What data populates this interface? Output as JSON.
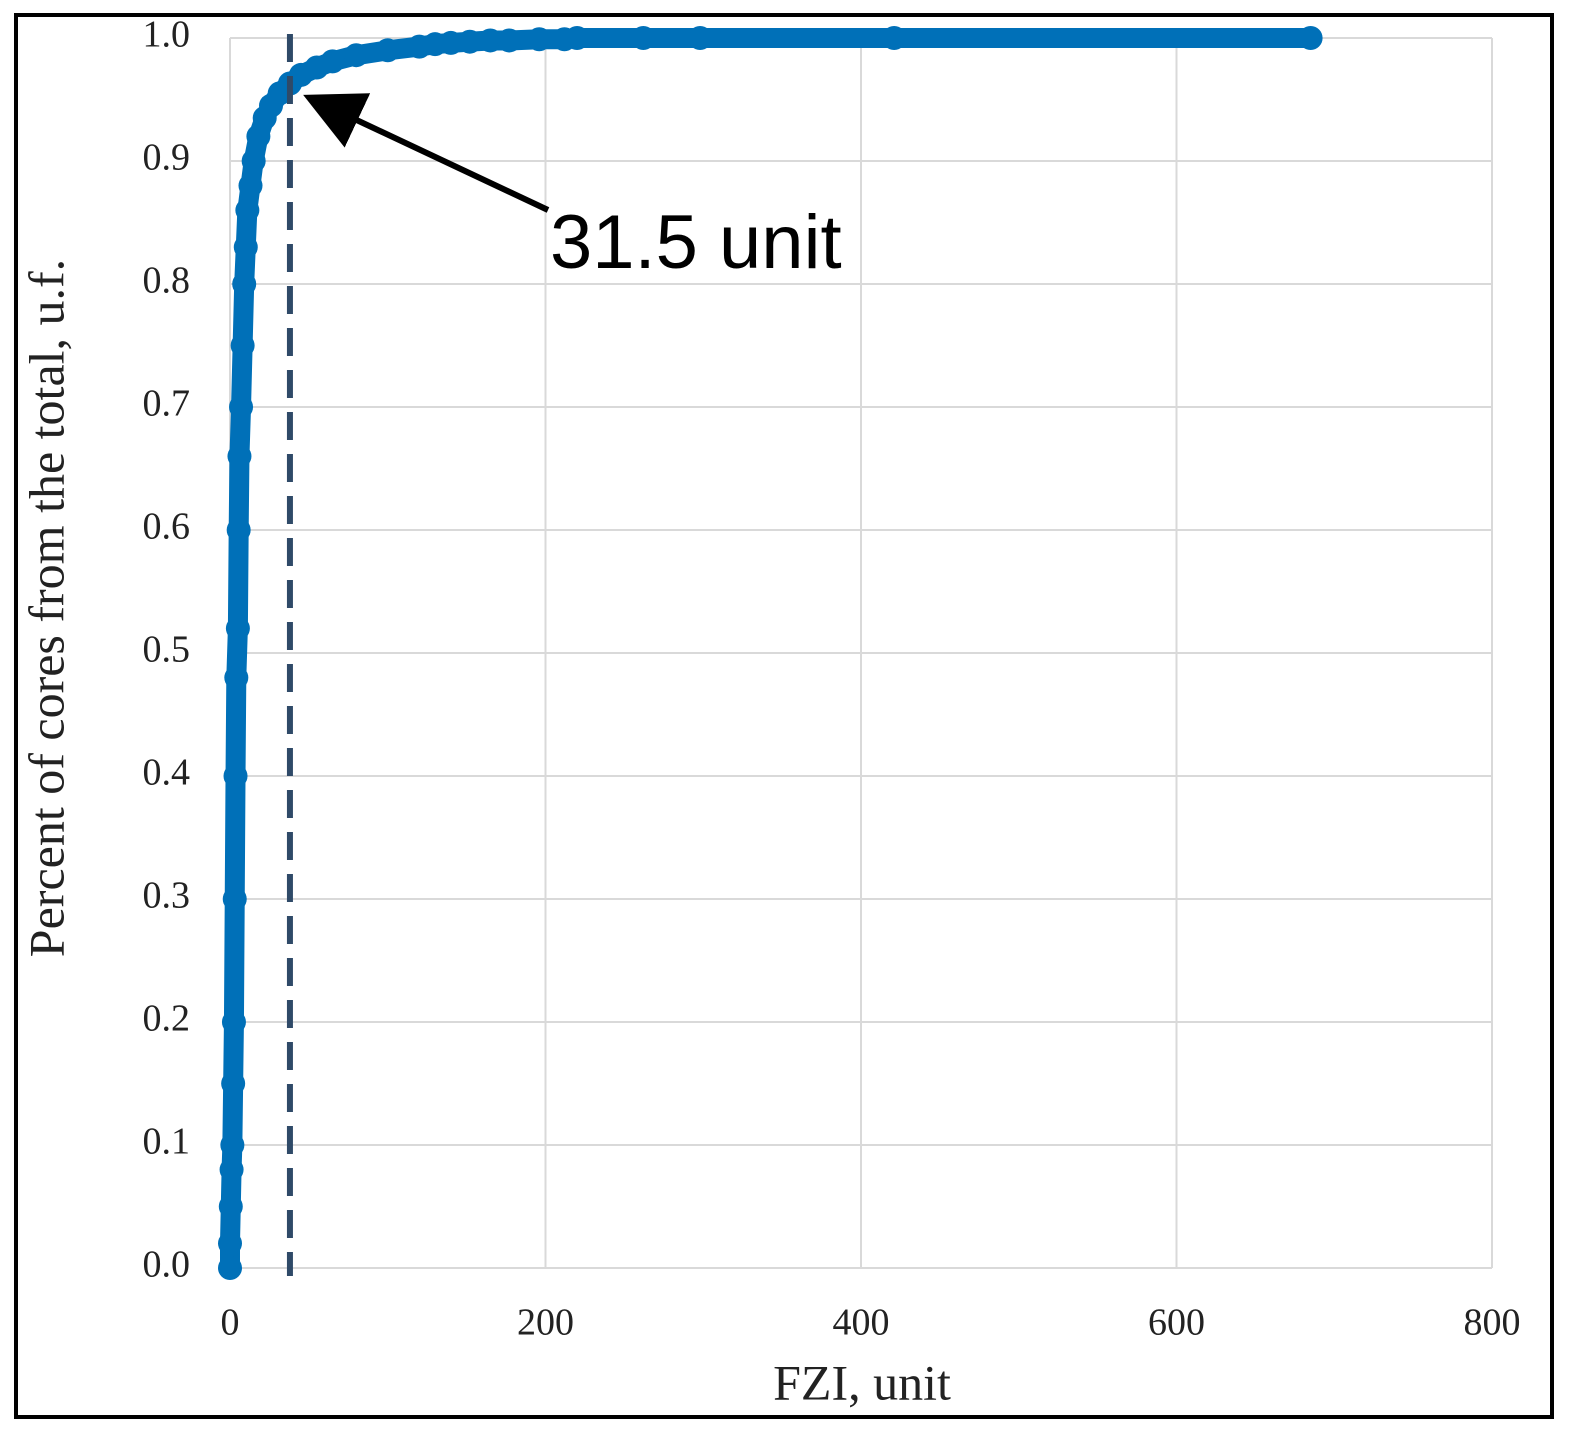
{
  "chart_data": {
    "type": "scatter",
    "x_label": "FZI, unit",
    "y_label": "Percent of cores from the total, u.f.",
    "annotation": "31.5 unit",
    "threshold_x": 38,
    "series": [
      {
        "color": "#0070b8",
        "x": [
          0,
          0,
          0.5,
          1,
          1.5,
          2,
          2.5,
          3,
          3.5,
          4,
          5,
          5.5,
          6,
          7,
          8,
          9,
          10,
          11,
          13,
          15,
          18,
          22,
          26,
          31.5,
          38,
          45,
          55,
          65,
          80,
          100,
          120,
          130,
          140,
          152,
          165,
          177,
          196,
          212,
          220,
          262,
          298,
          421,
          685
        ],
        "values": [
          0,
          0.02,
          0.05,
          0.08,
          0.1,
          0.15,
          0.2,
          0.3,
          0.4,
          0.48,
          0.52,
          0.6,
          0.66,
          0.7,
          0.75,
          0.8,
          0.83,
          0.86,
          0.88,
          0.9,
          0.92,
          0.935,
          0.945,
          0.955,
          0.963,
          0.97,
          0.976,
          0.981,
          0.986,
          0.99,
          0.993,
          0.995,
          0.996,
          0.997,
          0.998,
          0.998,
          0.999,
          0.999,
          1.0,
          1.0,
          1.0,
          1.0,
          1.0
        ]
      }
    ],
    "xlim": [
      0,
      800
    ],
    "xticks": [
      0,
      200,
      400,
      600,
      800
    ],
    "ylim": [
      0,
      1
    ],
    "yticks": [
      {
        "value": 0,
        "label": "0.0"
      },
      0.1,
      0.2,
      0.3,
      0.4,
      0.5,
      0.6,
      0.7,
      0.8,
      0.9,
      {
        "value": 1,
        "label": "1.0"
      }
    ],
    "grid": true
  }
}
